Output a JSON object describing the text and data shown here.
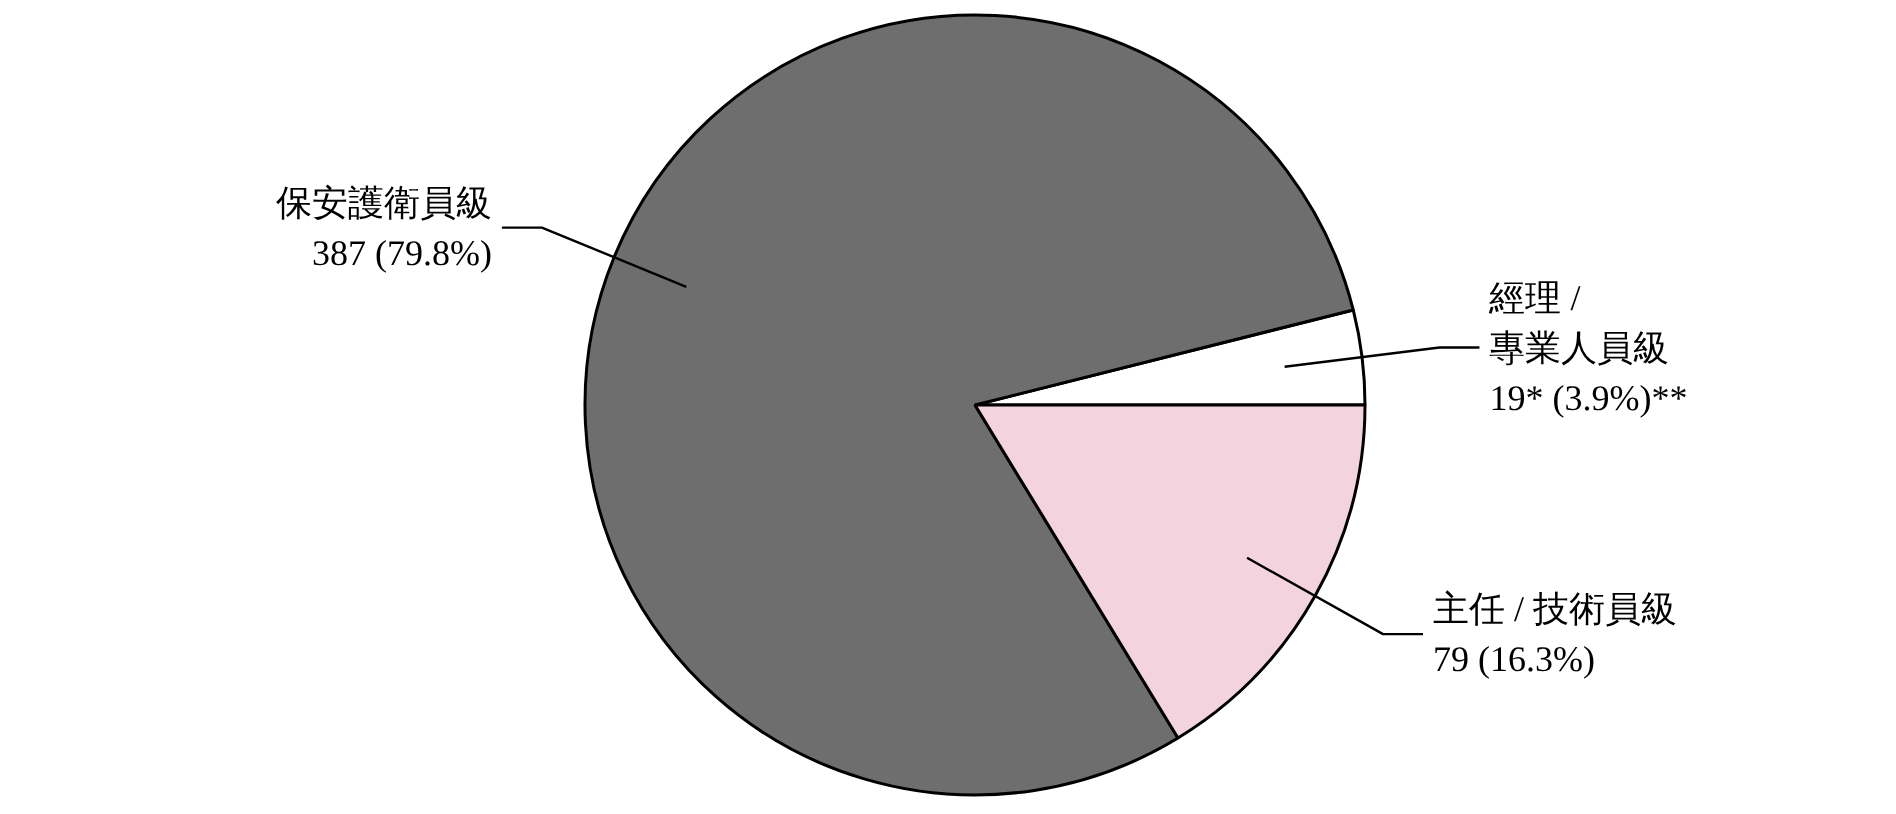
{
  "chart_data": {
    "type": "pie",
    "categories": [
      "經理 /\n專業人員級",
      "保安護衛員級",
      "主任 / 技術員級"
    ],
    "values": [
      19,
      387,
      79
    ],
    "value_labels": [
      "19* (3.9%)**",
      "387 (79.8%)",
      "79 (16.3%)"
    ],
    "colors": [
      "#ffffff",
      "#6e6e6e",
      "#f2d3de"
    ]
  }
}
